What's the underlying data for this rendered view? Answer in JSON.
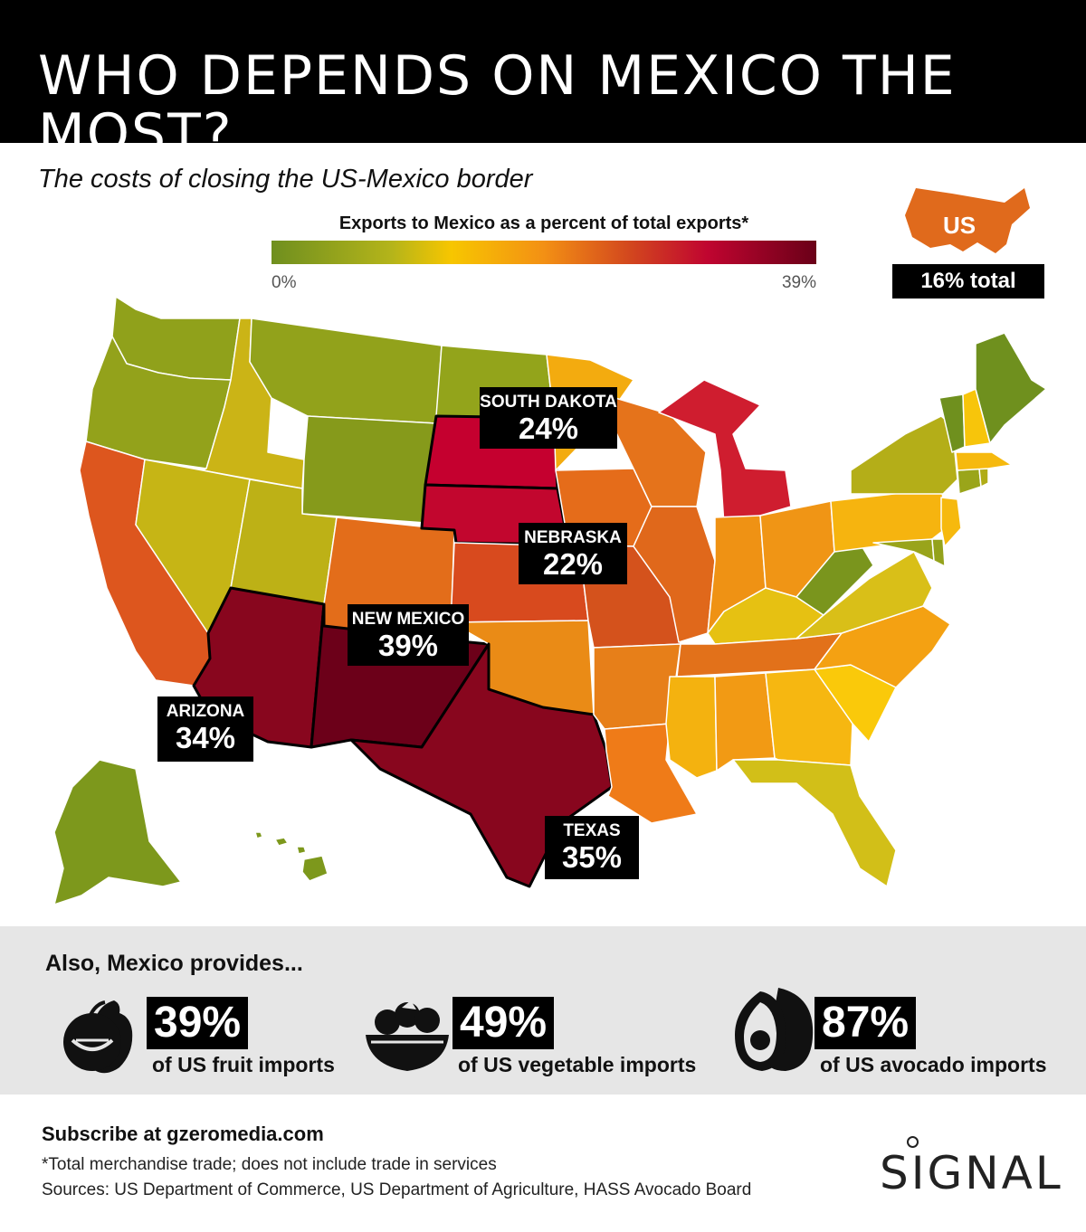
{
  "title": "WHO DEPENDS ON MEXICO THE MOST?",
  "subtitle": "The costs of closing the US-Mexico border",
  "legend": {
    "title": "Exports to Mexico as a percent of total exports*",
    "min_label": "0%",
    "max_label": "39%"
  },
  "us_total": {
    "label": "US",
    "value": "16% total"
  },
  "highlighted_states": [
    {
      "name": "SOUTH DAKOTA",
      "value": "24%"
    },
    {
      "name": "NEBRASKA",
      "value": "22%"
    },
    {
      "name": "NEW MEXICO",
      "value": "39%"
    },
    {
      "name": "ARIZONA",
      "value": "34%"
    },
    {
      "name": "TEXAS",
      "value": "35%"
    }
  ],
  "provides": {
    "heading": "Also, Mexico provides...",
    "items": [
      {
        "icon": "fruit-icon",
        "value": "39%",
        "label": "of US fruit imports"
      },
      {
        "icon": "vegetable-bowl-icon",
        "value": "49%",
        "label": "of US vegetable imports"
      },
      {
        "icon": "avocado-icon",
        "value": "87%",
        "label": "of US avocado imports"
      }
    ]
  },
  "footer": {
    "subscribe": "Subscribe at gzeromedia.com",
    "footnote": "*Total merchandise trade; does not include trade in services",
    "sources": "Sources: US Department of Commerce, US Department of Agriculture, HASS Avocado Board"
  },
  "logo": "SIGNAL",
  "colors": {
    "scale_low": "#6f8f1f",
    "scale_mid": "#f7c600",
    "scale_high": "#6a0018",
    "label_bg": "#000000",
    "panel_bg": "#e6e6e6",
    "us_icon": "#e06a1c"
  }
}
